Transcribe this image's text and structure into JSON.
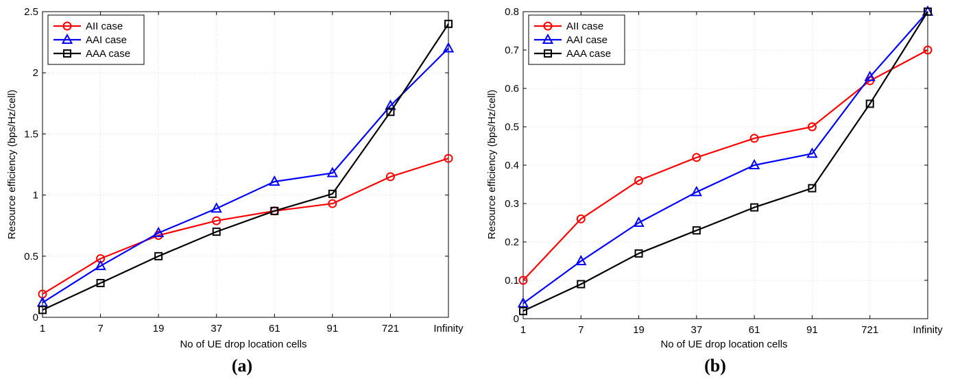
{
  "chart_data": [
    {
      "type": "line",
      "panel_label": "(a)",
      "xlabel": "No of UE drop location cells",
      "ylabel": "Resource efficiency (bps/Hz/cell)",
      "categories": [
        "1",
        "7",
        "19",
        "37",
        "61",
        "91",
        "721",
        "Infinity"
      ],
      "ylim": [
        0,
        2.5
      ],
      "yticks": [
        "0",
        "0.5",
        "1",
        "1.5",
        "2",
        "2.5"
      ],
      "grid": true,
      "legend_position": "top-left",
      "series": [
        {
          "name": "AII case",
          "color": "#ff0000",
          "marker": "circle",
          "values": [
            0.19,
            0.48,
            0.67,
            0.79,
            0.87,
            0.93,
            1.15,
            1.3
          ]
        },
        {
          "name": "AAI case",
          "color": "#0000ff",
          "marker": "triangle",
          "values": [
            0.12,
            0.42,
            0.69,
            0.89,
            1.11,
            1.18,
            1.73,
            2.2
          ]
        },
        {
          "name": "AAA case",
          "color": "#000000",
          "marker": "square",
          "values": [
            0.06,
            0.28,
            0.5,
            0.7,
            0.87,
            1.01,
            1.68,
            2.4
          ]
        }
      ]
    },
    {
      "type": "line",
      "panel_label": "(b)",
      "xlabel": "No of UE drop location cells",
      "ylabel": "Resource efficiency (bps/Hz/cell)",
      "categories": [
        "1",
        "7",
        "19",
        "37",
        "61",
        "91",
        "721",
        "Infinity"
      ],
      "ylim": [
        0,
        0.8
      ],
      "yticks": [
        "0",
        "0.1",
        "0.2",
        "0.3",
        "0.4",
        "0.5",
        "0.6",
        "0.7",
        "0.8"
      ],
      "grid": true,
      "legend_position": "top-left",
      "series": [
        {
          "name": "AII case",
          "color": "#ff0000",
          "marker": "circle",
          "values": [
            0.1,
            0.26,
            0.36,
            0.42,
            0.47,
            0.5,
            0.62,
            0.7
          ]
        },
        {
          "name": "AAI case",
          "color": "#0000ff",
          "marker": "triangle",
          "values": [
            0.04,
            0.15,
            0.25,
            0.33,
            0.4,
            0.43,
            0.63,
            0.8
          ]
        },
        {
          "name": "AAA case",
          "color": "#000000",
          "marker": "square",
          "values": [
            0.02,
            0.09,
            0.17,
            0.23,
            0.29,
            0.34,
            0.56,
            0.8
          ]
        }
      ]
    }
  ]
}
